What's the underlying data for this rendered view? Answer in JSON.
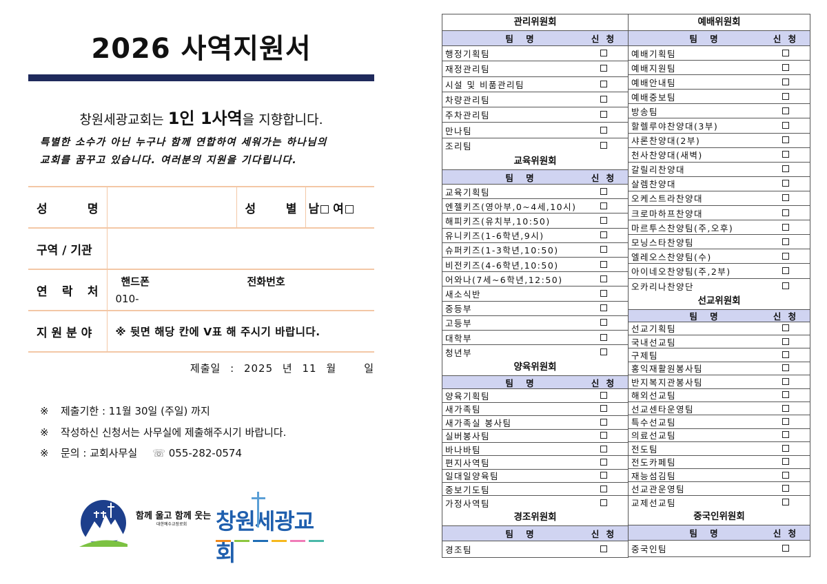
{
  "title": "2026 사역지원서",
  "slogan": {
    "pre": "창원세광교회는 ",
    "bold": "1인 1사역",
    "post": "을 지향합니다."
  },
  "vision": [
    "특별한 소수가 아닌 누구나 함께 연합하여 세워가는 하나님의",
    "교회를 꿈꾸고 있습니다. 여러분의 지원을 기다립니다."
  ],
  "form": {
    "name_label": [
      "성",
      "명"
    ],
    "gender_label": [
      "성",
      "별"
    ],
    "male": "남",
    "female": "여",
    "district_label": "구역 / 기관",
    "contact_label": [
      "연",
      "락",
      "처"
    ],
    "mobile_label": "핸드폰",
    "phone_label": "전화번호",
    "mobile_value": "010-",
    "field_label": "지 원 분 야",
    "field_note": "※ 뒷면 해당 칸에 V표 해 주시기 바랍니다."
  },
  "date": {
    "label": "제출일 :",
    "year": "2025",
    "year_unit": "년",
    "month": "11",
    "month_unit": "월",
    "day_unit": "일"
  },
  "notes": [
    {
      "mark": "※",
      "text": "제출기한 : 11월 30일 (주일) 까지"
    },
    {
      "mark": "※",
      "text": "작성하신 신청서는 사무실에 제출해주시기 바랍니다."
    },
    {
      "mark": "※",
      "text": "문의 : 교회사무실",
      "phone_icon": "telephone-icon",
      "phone": "055-282-0574"
    }
  ],
  "logo": {
    "tagline": "함께 울고 함께 웃는",
    "denomination": "대한예수교장로회",
    "church": "창원세광교회",
    "colors": [
      "#f08a1c",
      "#8cc63f",
      "#1f6db5",
      "#f6b81c",
      "#f07cb8",
      "#4ab8a8"
    ]
  },
  "table_header": {
    "name": "팀 명",
    "apply": "신 청"
  },
  "columns": [
    [
      {
        "title": "관리위원회",
        "teams": [
          "행정기획팀",
          "재정관리팀",
          "시설 및 비품관리팀",
          "차량관리팀",
          "주차관리팀",
          "만나팀",
          "조리팀"
        ]
      },
      {
        "title": "교육위원회",
        "teams": [
          "교육기획팀",
          "엔젤키즈(영아부,0~4세,10시)",
          "해피키즈(유치부,10:50)",
          "유니키즈(1-6학년,9시)",
          "슈퍼키즈(1-3학년,10:50)",
          "비전키즈(4-6학년,10:50)",
          "어와나(7세~6학년,12:50)",
          "새소식반",
          "중등부",
          "고등부",
          "대학부",
          "청년부"
        ]
      },
      {
        "title": "양육위원회",
        "teams": [
          "양육기획팀",
          "새가족팀",
          "새가족실 봉사팀",
          "실버봉사팀",
          "바나바팀",
          "편지사역팀",
          "일대일양육팀",
          "중보기도팀",
          "가정사역팀"
        ]
      },
      {
        "title": "경조위원회",
        "teams": [
          "경조팀"
        ]
      }
    ],
    [
      {
        "title": "예배위원회",
        "teams": [
          "예배기획팀",
          "예배지원팀",
          "예배안내팀",
          "예배중보팀",
          "방송팀",
          "할렐루야찬양대(3부)",
          "샤론찬양대(2부)",
          "천사찬양대(새벽)",
          "갈릴리찬양대",
          "살렘찬양대",
          "오케스트라찬양대",
          "크로마하프찬양대",
          "마르투스찬양팀(주,오후)",
          "모닝스타찬양팀",
          "엘레오스찬양팀(수)",
          "아이네오찬양팀(주,2부)",
          "오카리나찬양단"
        ]
      },
      {
        "title": "선교위원회",
        "teams": [
          "선교기획팀",
          "국내선교팀",
          "구제팀",
          "홍익재활원봉사팀",
          "반지복지관봉사팀",
          "해외선교팀",
          "선교센타운영팀",
          "특수선교팀",
          "의료선교팀",
          "전도팀",
          "전도카페팀",
          "재능섬김팀",
          "선교관운영팀",
          "교제선교팀"
        ]
      },
      {
        "title": "중국인위원회",
        "teams": [
          "중국인팀"
        ]
      }
    ]
  ],
  "colors": {
    "title_bar": "#1f2a5c",
    "form_border": "#f3c7a5",
    "table_header_bg": "#d0d4f1"
  }
}
